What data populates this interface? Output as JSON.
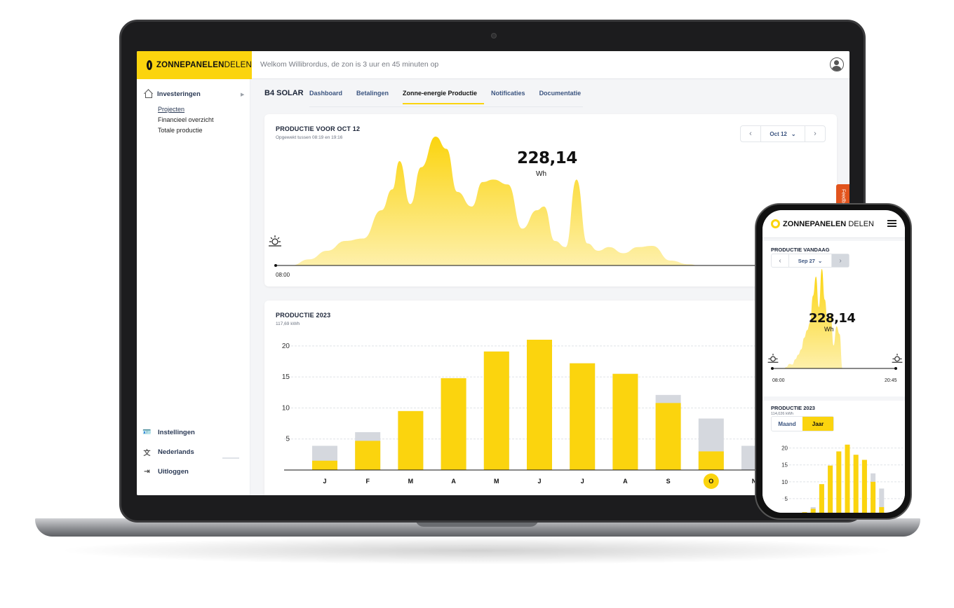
{
  "colors": {
    "brand_yellow": "#fbd40e",
    "bar_grey": "#d5d8de",
    "feedback_orange": "#e2541d",
    "nav_blue": "#3c5580"
  },
  "topbar": {
    "brand_bold": "ZONNEPANELEN",
    "brand_thin": "DELEN",
    "welcome": "Welkom Willibrordus, de zon is 3 uur en 45 minuten op",
    "avatar_icon": "user-circle-icon"
  },
  "sidebar": {
    "section_label": "Investeringen",
    "section_icon": "home-icon",
    "sub_items": [
      "Projecten",
      "Financieel overzicht",
      "Totale productie"
    ],
    "bottom_items": [
      {
        "label": "Instellingen",
        "icon": "id-card-icon"
      },
      {
        "label": "Nederlands",
        "icon": "translate-icon"
      },
      {
        "label": "Uitloggen",
        "icon": "logout-icon"
      }
    ]
  },
  "main": {
    "project": "B4 SOLAR",
    "tabs": [
      "Dashboard",
      "Betalingen",
      "Zonne-energie Productie",
      "Notificaties",
      "Documentatie"
    ],
    "active_tab": "Zonne-energie Productie"
  },
  "daily_card": {
    "title": "PRODUCTIE VOOR OCT 12",
    "subtitle": "Opgewekt tussen 08:19 en 19:16",
    "date_label": "Oct 12",
    "value": "228,14",
    "unit": "Wh",
    "time_start": "08:00"
  },
  "yearly_card": {
    "title": "PRODUCTIE 2023",
    "subtitle": "117,69 kWh"
  },
  "feedback_label": "Feedback",
  "phone": {
    "brand_bold": "ZONNEPANELEN",
    "brand_thin": "DELEN",
    "today_title": "PRODUCTIE VANDAAG",
    "date_label": "Sep 27",
    "value": "228,14",
    "unit": "Wh",
    "time_start": "08:00",
    "time_end": "20:45",
    "year_title": "PRODUCTIE 2023",
    "year_subtitle": "114,026 kWh",
    "toggle": [
      "Maand",
      "Jaar"
    ],
    "active_toggle": "Jaar"
  },
  "chart_data": [
    {
      "type": "area",
      "title": "PRODUCTIE VOOR OCT 12",
      "x_unit": "hour",
      "x": [
        8.0,
        8.5,
        9.0,
        9.5,
        10.0,
        10.5,
        10.8,
        11.0,
        11.3,
        11.6,
        12.0,
        12.3,
        12.6,
        13.0,
        13.3,
        13.6,
        14.0,
        14.4,
        14.8,
        15.0,
        15.3,
        15.6,
        15.9,
        16.2,
        16.5,
        16.8,
        17.2,
        17.6,
        18.0,
        18.5,
        19.0,
        19.3
      ],
      "y": [
        0,
        5,
        12,
        20,
        22,
        45,
        62,
        85,
        50,
        80,
        105,
        95,
        60,
        48,
        68,
        70,
        66,
        30,
        45,
        48,
        20,
        15,
        70,
        18,
        12,
        15,
        10,
        15,
        16,
        4,
        1,
        0
      ],
      "grid": false
    },
    {
      "type": "bar",
      "title": "PRODUCTIE 2023",
      "categories": [
        "J",
        "F",
        "M",
        "A",
        "M",
        "J",
        "J",
        "A",
        "S",
        "O",
        "N"
      ],
      "highlight_category_index": 9,
      "ylim": [
        0,
        21
      ],
      "yticks": [
        5,
        10,
        15,
        20
      ],
      "series": [
        {
          "values": [
            3.9,
            6.1,
            9.5,
            14.8,
            19.1,
            21.0,
            17.2,
            15.5,
            12.1,
            8.3,
            3.9
          ]
        },
        {
          "values": [
            1.5,
            4.7,
            9.5,
            14.8,
            19.1,
            21.0,
            17.2,
            15.5,
            10.8,
            3.0,
            0
          ]
        }
      ],
      "grid": true
    },
    {
      "type": "bar",
      "title": "PRODUCTIE 2023",
      "yticks": [
        5,
        10,
        15,
        20
      ],
      "ylim": [
        0,
        22
      ],
      "series": [
        {
          "values": [
            1.0,
            2.5,
            9.3,
            14.8,
            19.0,
            21.0,
            18.0,
            16.5,
            12.5,
            8.0
          ]
        },
        {
          "values": [
            1.0,
            2.0,
            9.3,
            14.8,
            19.0,
            21.0,
            18.0,
            16.5,
            10.0,
            2.5
          ]
        }
      ],
      "grid": true
    }
  ]
}
